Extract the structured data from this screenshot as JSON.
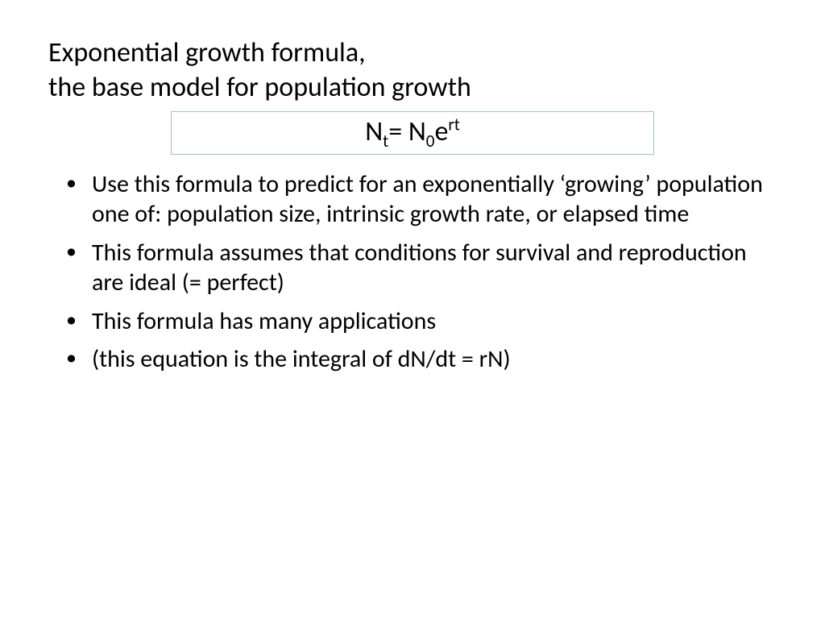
{
  "title": {
    "line1": "Exponential growth formula,",
    "line2": "the base model for population growth"
  },
  "formula": {
    "N": "N",
    "sub_t": "t",
    "eq": "= N",
    "sub_0": "0",
    "e": "e",
    "sup_rt": "rt",
    "border_color": "#a6bdd9",
    "fontsize": 34
  },
  "bullets": [
    "Use this formula to predict for an exponentially ‘growing’ population one of: population size, intrinsic growth rate, or elapsed time",
    "This formula assumes that conditions for survival and reproduction are ideal (= perfect)",
    "This formula has many applications",
    "(this equation is the integral of dN/dt = rN)"
  ],
  "style": {
    "background_color": "#ffffff",
    "text_color": "#000000",
    "title_fontsize": 34,
    "body_fontsize": 30,
    "font_family": "Calibri"
  }
}
